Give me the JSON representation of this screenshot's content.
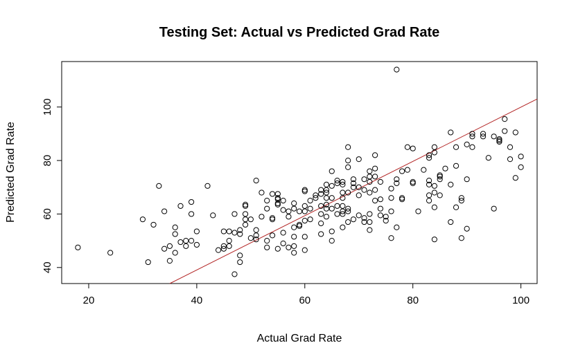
{
  "chart_data": {
    "type": "scatter",
    "title": "Testing Set: Actual vs Predicted Grad Rate",
    "xlabel": "Actual Grad Rate",
    "ylabel": "Predicted Grad Rate",
    "xlim": [
      15,
      103
    ],
    "ylim": [
      34,
      117
    ],
    "x_ticks": [
      "20",
      "40",
      "60",
      "80",
      "100"
    ],
    "y_ticks": [
      "40",
      "60",
      "80",
      "100"
    ],
    "grid": false,
    "reference_line": {
      "color": "#b22222",
      "points": [
        [
          35,
          34
        ],
        [
          103,
          103
        ]
      ]
    },
    "points": [
      [
        18,
        47.5
      ],
      [
        24,
        45.5
      ],
      [
        30,
        58
      ],
      [
        31,
        42
      ],
      [
        32,
        56
      ],
      [
        33,
        70.5
      ],
      [
        34,
        61
      ],
      [
        34,
        47
      ],
      [
        35,
        48
      ],
      [
        35,
        42.5
      ],
      [
        36,
        52.5
      ],
      [
        36,
        45.5
      ],
      [
        36,
        55
      ],
      [
        37,
        63
      ],
      [
        37,
        49.5
      ],
      [
        38,
        48
      ],
      [
        38,
        50
      ],
      [
        39,
        60
      ],
      [
        39,
        64.5
      ],
      [
        39,
        50
      ],
      [
        40,
        53.5
      ],
      [
        40,
        48.5
      ],
      [
        42,
        70.5
      ],
      [
        43,
        59.5
      ],
      [
        44,
        46.5
      ],
      [
        45,
        53.5
      ],
      [
        45,
        48
      ],
      [
        45,
        47
      ],
      [
        46,
        53.5
      ],
      [
        46,
        50
      ],
      [
        46,
        48
      ],
      [
        47,
        53
      ],
      [
        47,
        60
      ],
      [
        47,
        37.5
      ],
      [
        48,
        44.5
      ],
      [
        48,
        42
      ],
      [
        48,
        52.5
      ],
      [
        48,
        54
      ],
      [
        49,
        63
      ],
      [
        49,
        63.5
      ],
      [
        49,
        58
      ],
      [
        49,
        60
      ],
      [
        49,
        56
      ],
      [
        50,
        58
      ],
      [
        50,
        51
      ],
      [
        51,
        72.5
      ],
      [
        51,
        54
      ],
      [
        51,
        52
      ],
      [
        51,
        50.5
      ],
      [
        52,
        68
      ],
      [
        52,
        59
      ],
      [
        53,
        65
      ],
      [
        53,
        62
      ],
      [
        53,
        50
      ],
      [
        53,
        47.5
      ],
      [
        54,
        67.5
      ],
      [
        54,
        58
      ],
      [
        54,
        58.5
      ],
      [
        54,
        52
      ],
      [
        55,
        67.5
      ],
      [
        55,
        65.5
      ],
      [
        55,
        64
      ],
      [
        55,
        63.5
      ],
      [
        55,
        47
      ],
      [
        55,
        66
      ],
      [
        56,
        65
      ],
      [
        56,
        61.5
      ],
      [
        56,
        53
      ],
      [
        56,
        49
      ],
      [
        57,
        61
      ],
      [
        57,
        59
      ],
      [
        57,
        47.5
      ],
      [
        58,
        64
      ],
      [
        58,
        62
      ],
      [
        58,
        55
      ],
      [
        58,
        48
      ],
      [
        58,
        45.5
      ],
      [
        58,
        51.5
      ],
      [
        59,
        61
      ],
      [
        59,
        56
      ],
      [
        59,
        55.5
      ],
      [
        60,
        68.5
      ],
      [
        60,
        69
      ],
      [
        60,
        63
      ],
      [
        60,
        61
      ],
      [
        60,
        57.5
      ],
      [
        60,
        51.5
      ],
      [
        60,
        46.5
      ],
      [
        61,
        65
      ],
      [
        61,
        62
      ],
      [
        61,
        58
      ],
      [
        62,
        67
      ],
      [
        62,
        66
      ],
      [
        63,
        69
      ],
      [
        63,
        67.5
      ],
      [
        63,
        63
      ],
      [
        63,
        60
      ],
      [
        63,
        56.5
      ],
      [
        63,
        52.5
      ],
      [
        64,
        71
      ],
      [
        64,
        69
      ],
      [
        64,
        68
      ],
      [
        64,
        66
      ],
      [
        64,
        63.5
      ],
      [
        64,
        62
      ],
      [
        64,
        59
      ],
      [
        65,
        76
      ],
      [
        65,
        70.5
      ],
      [
        65,
        66
      ],
      [
        65,
        62
      ],
      [
        65,
        53.5
      ],
      [
        65,
        50
      ],
      [
        66,
        71.5
      ],
      [
        66,
        63
      ],
      [
        66,
        60
      ],
      [
        66,
        72.5
      ],
      [
        67,
        72
      ],
      [
        67,
        71
      ],
      [
        67,
        68
      ],
      [
        67,
        66
      ],
      [
        67,
        63
      ],
      [
        67,
        61
      ],
      [
        67,
        60
      ],
      [
        67,
        55
      ],
      [
        68,
        85
      ],
      [
        68,
        80
      ],
      [
        68,
        77.5
      ],
      [
        68,
        68
      ],
      [
        68,
        62
      ],
      [
        68,
        61
      ],
      [
        68,
        57
      ],
      [
        69,
        73
      ],
      [
        69,
        71.5
      ],
      [
        69,
        70
      ],
      [
        69,
        58
      ],
      [
        70,
        80.5
      ],
      [
        70,
        70
      ],
      [
        70,
        67
      ],
      [
        70,
        59.5
      ],
      [
        71,
        73
      ],
      [
        71,
        69
      ],
      [
        71,
        58.5
      ],
      [
        71,
        57
      ],
      [
        72,
        76
      ],
      [
        72,
        74
      ],
      [
        72,
        72
      ],
      [
        72,
        68
      ],
      [
        72,
        60
      ],
      [
        72,
        57
      ],
      [
        72,
        54
      ],
      [
        73,
        82
      ],
      [
        73,
        77
      ],
      [
        73,
        74
      ],
      [
        73,
        69
      ],
      [
        73,
        65
      ],
      [
        74,
        72
      ],
      [
        74,
        65.5
      ],
      [
        74,
        62
      ],
      [
        74,
        59.5
      ],
      [
        75,
        59
      ],
      [
        75,
        57.5
      ],
      [
        76,
        69.5
      ],
      [
        76,
        66
      ],
      [
        76,
        61
      ],
      [
        76,
        51
      ],
      [
        77,
        114
      ],
      [
        77,
        73
      ],
      [
        77,
        71.5
      ],
      [
        77,
        55
      ],
      [
        78,
        76
      ],
      [
        78,
        66
      ],
      [
        78,
        65.5
      ],
      [
        79,
        85
      ],
      [
        79,
        76.5
      ],
      [
        80,
        84.5
      ],
      [
        80,
        72
      ],
      [
        80,
        71.5
      ],
      [
        81,
        61
      ],
      [
        82,
        76.5
      ],
      [
        83,
        82
      ],
      [
        83,
        81
      ],
      [
        83,
        72.5
      ],
      [
        83,
        71
      ],
      [
        83,
        67
      ],
      [
        83,
        65
      ],
      [
        84,
        85
      ],
      [
        84,
        83
      ],
      [
        84,
        70.5
      ],
      [
        84,
        68
      ],
      [
        84,
        62.5
      ],
      [
        84,
        50.5
      ],
      [
        85,
        74
      ],
      [
        85,
        73
      ],
      [
        85,
        67
      ],
      [
        85,
        74.5
      ],
      [
        86,
        77
      ],
      [
        87,
        90.5
      ],
      [
        87,
        71
      ],
      [
        87,
        57
      ],
      [
        88,
        85
      ],
      [
        88,
        78
      ],
      [
        88,
        62.5
      ],
      [
        89,
        66
      ],
      [
        89,
        65
      ],
      [
        89,
        51
      ],
      [
        90,
        86
      ],
      [
        90,
        73
      ],
      [
        90,
        54.5
      ],
      [
        91,
        90
      ],
      [
        91,
        89
      ],
      [
        91,
        85
      ],
      [
        93,
        90
      ],
      [
        93,
        89
      ],
      [
        94,
        81
      ],
      [
        95,
        89
      ],
      [
        95,
        62
      ],
      [
        96,
        88
      ],
      [
        96,
        87.5
      ],
      [
        96,
        87
      ],
      [
        97,
        95.5
      ],
      [
        97,
        91
      ],
      [
        98,
        85
      ],
      [
        98,
        80.5
      ],
      [
        99,
        90.5
      ],
      [
        99,
        73.5
      ],
      [
        100,
        81.5
      ],
      [
        100,
        77.5
      ]
    ]
  }
}
